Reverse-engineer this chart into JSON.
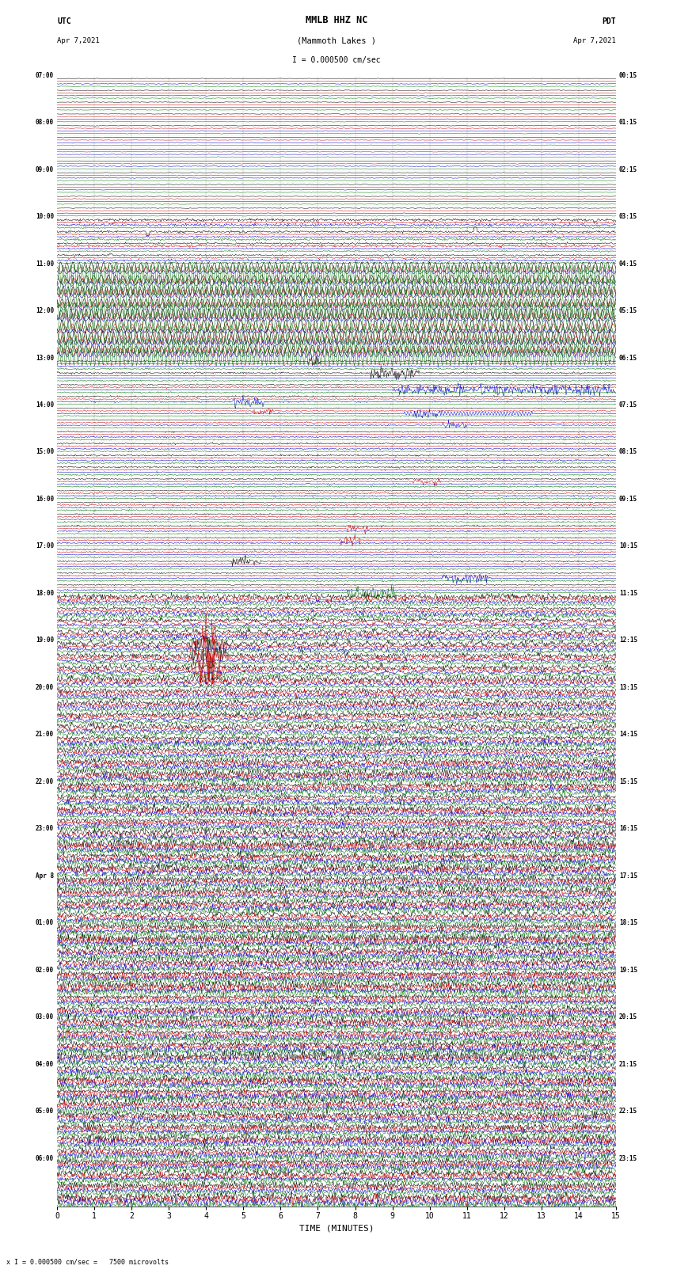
{
  "title_line1": "MMLB HHZ NC",
  "title_line2": "(Mammoth Lakes )",
  "scale_text": "I = 0.000500 cm/sec",
  "bottom_scale_text": "x I = 0.000500 cm/sec =   7500 microvolts",
  "utc_label": "UTC",
  "utc_date": "Apr 7,2021",
  "pdt_label": "PDT",
  "pdt_date": "Apr 7,2021",
  "xlabel": "TIME (MINUTES)",
  "bg_color": "#ffffff",
  "trace_colors": [
    "black",
    "#cc0000",
    "#0000cc",
    "#007700"
  ],
  "left_times": [
    "07:00",
    "",
    "",
    "",
    "08:00",
    "",
    "",
    "",
    "09:00",
    "",
    "",
    "",
    "10:00",
    "",
    "",
    "",
    "11:00",
    "",
    "",
    "",
    "12:00",
    "",
    "",
    "",
    "13:00",
    "",
    "",
    "",
    "14:00",
    "",
    "",
    "",
    "15:00",
    "",
    "",
    "",
    "16:00",
    "",
    "",
    "",
    "17:00",
    "",
    "",
    "",
    "18:00",
    "",
    "",
    "",
    "19:00",
    "",
    "",
    "",
    "20:00",
    "",
    "",
    "",
    "21:00",
    "",
    "",
    "",
    "22:00",
    "",
    "",
    "",
    "23:00",
    "",
    "",
    "",
    "Apr 8",
    "",
    "",
    "",
    "01:00",
    "",
    "",
    "",
    "02:00",
    "",
    "",
    "",
    "03:00",
    "",
    "",
    "",
    "04:00",
    "",
    "",
    "",
    "05:00",
    "",
    "",
    "",
    "06:00",
    "",
    "",
    ""
  ],
  "right_times": [
    "00:15",
    "",
    "",
    "",
    "01:15",
    "",
    "",
    "",
    "02:15",
    "",
    "",
    "",
    "03:15",
    "",
    "",
    "",
    "04:15",
    "",
    "",
    "",
    "05:15",
    "",
    "",
    "",
    "06:15",
    "",
    "",
    "",
    "07:15",
    "",
    "",
    "",
    "08:15",
    "",
    "",
    "",
    "09:15",
    "",
    "",
    "",
    "10:15",
    "",
    "",
    "",
    "11:15",
    "",
    "",
    "",
    "12:15",
    "",
    "",
    "",
    "13:15",
    "",
    "",
    "",
    "14:15",
    "",
    "",
    "",
    "15:15",
    "",
    "",
    "",
    "16:15",
    "",
    "",
    "",
    "17:15",
    "",
    "",
    "",
    "18:15",
    "",
    "",
    "",
    "19:15",
    "",
    "",
    "",
    "20:15",
    "",
    "",
    "",
    "21:15",
    "",
    "",
    "",
    "22:15",
    "",
    "",
    "",
    "23:15",
    "",
    "",
    ""
  ],
  "n_rows": 96,
  "n_traces_per_row": 4,
  "xmin": 0,
  "xmax": 15,
  "fig_width": 8.5,
  "fig_height": 16.13,
  "dpi": 100,
  "noise_seed": 42
}
